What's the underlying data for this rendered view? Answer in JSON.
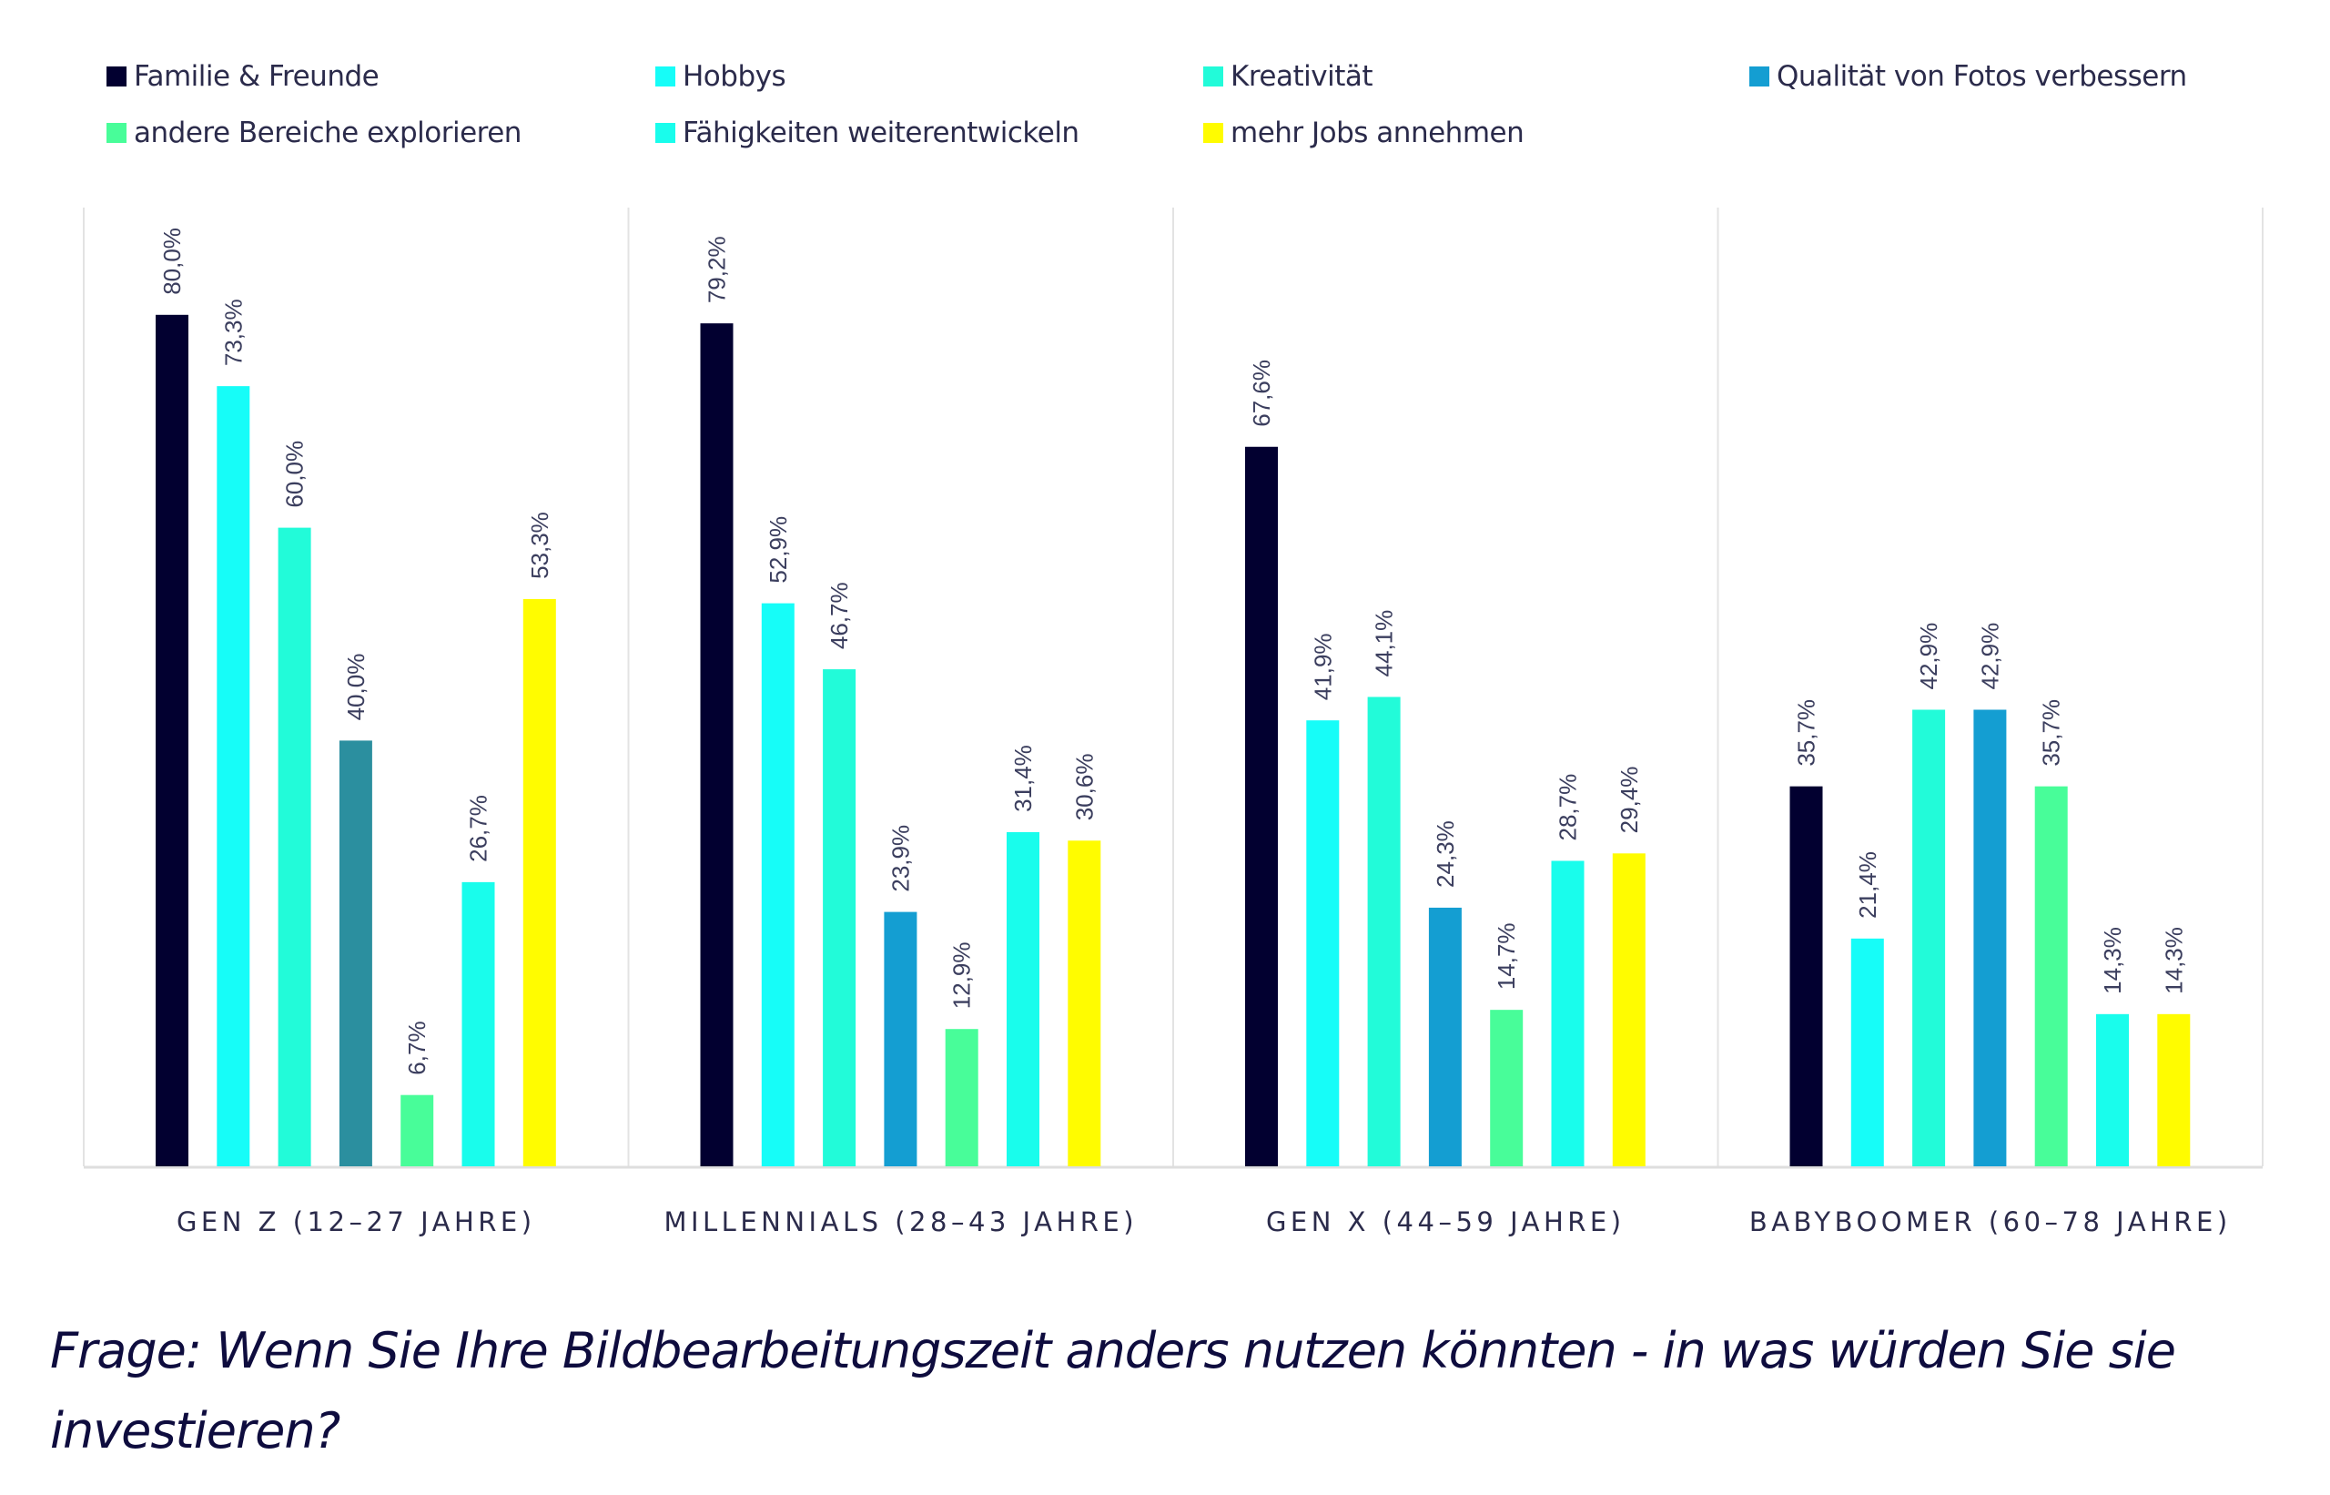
{
  "legend": [
    {
      "label": "Familie & Freunde",
      "color": "#020030"
    },
    {
      "label": "Hobbys",
      "color": "#16fdf8"
    },
    {
      "label": "Kreativität",
      "color": "#22fbd9"
    },
    {
      "label": "Qualität von Fotos verbessern",
      "color": "#149ed2"
    },
    {
      "label": "andere Bereiche explorieren",
      "color": "#48fd99"
    },
    {
      "label": "Fähigkeiten weiterentwickeln",
      "color": "#19fdec"
    },
    {
      "label": "mehr Jobs annehmen",
      "color": "#fffc00"
    }
  ],
  "chart_data": {
    "type": "bar",
    "title": "",
    "xlabel": "",
    "ylabel": "",
    "ylim": [
      0,
      100
    ],
    "grid": false,
    "legend_position": "top",
    "categories": [
      "GEN Z (12–27 JAHRE)",
      "MILLENNIALS (28–43 JAHRE)",
      "GEN X (44–59 JAHRE)",
      "BABYBOOMER (60–78 JAHRE)"
    ],
    "series": [
      {
        "name": "Familie & Freunde",
        "values": [
          80.0,
          79.2,
          67.6,
          35.7
        ],
        "labels": [
          "80,0%",
          "79,2%",
          "67,6%",
          "35,7%"
        ]
      },
      {
        "name": "Hobbys",
        "values": [
          73.3,
          52.9,
          41.9,
          21.4
        ],
        "labels": [
          "73,3%",
          "52,9%",
          "41,9%",
          "21,4%"
        ]
      },
      {
        "name": "Kreativität",
        "values": [
          60.0,
          46.7,
          44.1,
          42.9
        ],
        "labels": [
          "60,0%",
          "46,7%",
          "44,1%",
          "42,9%"
        ]
      },
      {
        "name": "Qualität von Fotos verbessern",
        "values": [
          40.0,
          23.9,
          24.3,
          42.9
        ],
        "labels": [
          "40,0%",
          "23,9%",
          "24,3%",
          "42,9%"
        ],
        "point_colors": [
          "#2b8f9f",
          null,
          null,
          null
        ]
      },
      {
        "name": "andere Bereiche explorieren",
        "values": [
          6.7,
          12.9,
          14.7,
          35.7
        ],
        "labels": [
          "6,7%",
          "12,9%",
          "14,7%",
          "35,7%"
        ]
      },
      {
        "name": "Fähigkeiten weiterentwickeln",
        "values": [
          26.7,
          31.4,
          28.7,
          14.3
        ],
        "labels": [
          "26,7%",
          "31,4%",
          "28,7%",
          "14,3%"
        ]
      },
      {
        "name": "mehr Jobs annehmen",
        "values": [
          53.3,
          30.6,
          29.4,
          14.3
        ],
        "labels": [
          "53,3%",
          "30,6%",
          "29,4%",
          "14,3%"
        ]
      }
    ]
  },
  "caption": "Frage: Wenn Sie Ihre Bildbearbeitungszeit anders nutzen könnten - in was würden Sie sie investieren?"
}
